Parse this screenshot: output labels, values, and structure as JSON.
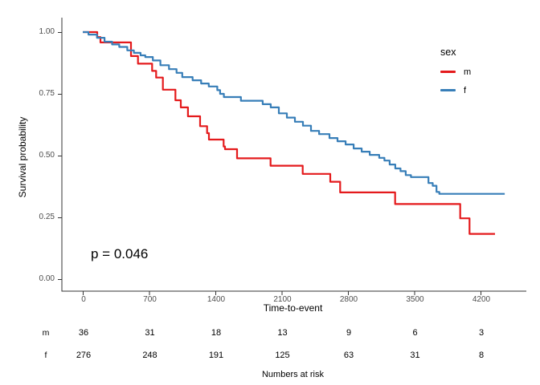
{
  "chart_data": {
    "type": "line",
    "subtype": "kaplan-meier-step-curves",
    "title": "",
    "xlabel": "Time-to-event",
    "ylabel": "Survival probability",
    "xlim": [
      -220,
      4660
    ],
    "ylim": [
      0,
      1.0
    ],
    "grid": false,
    "x_ticks": [
      0,
      700,
      1400,
      2100,
      2800,
      3500,
      4200
    ],
    "y_ticks": [
      {
        "label": "0.00",
        "value": 0.0
      },
      {
        "label": "0.25",
        "value": 0.25
      },
      {
        "label": "0.50",
        "value": 0.5
      },
      {
        "label": "0.75",
        "value": 0.75
      },
      {
        "label": "1.00",
        "value": 1.0
      }
    ],
    "annotation": {
      "p_value_text": "p = 0.046"
    },
    "legend": {
      "title": "sex",
      "position": "right-top",
      "entries": [
        {
          "label": "m",
          "color": "#E41A1C"
        },
        {
          "label": "f",
          "color": "#377EB8"
        }
      ]
    },
    "series": [
      {
        "name": "m",
        "color": "#E41A1C",
        "steps": [
          [
            0,
            1.0
          ],
          [
            153,
            0.98
          ],
          [
            187,
            0.958
          ],
          [
            509,
            0.903
          ],
          [
            583,
            0.872
          ],
          [
            732,
            0.843
          ],
          [
            775,
            0.816
          ],
          [
            846,
            0.767
          ],
          [
            978,
            0.724
          ],
          [
            1035,
            0.695
          ],
          [
            1111,
            0.659
          ],
          [
            1239,
            0.619
          ],
          [
            1313,
            0.591
          ],
          [
            1332,
            0.565
          ],
          [
            1487,
            0.537
          ],
          [
            1502,
            0.526
          ],
          [
            1629,
            0.489
          ],
          [
            1983,
            0.459
          ],
          [
            2322,
            0.426
          ],
          [
            2613,
            0.394
          ],
          [
            2718,
            0.351
          ],
          [
            3298,
            0.304
          ],
          [
            3985,
            0.246
          ],
          [
            4084,
            0.183
          ],
          [
            4353,
            0.183
          ]
        ]
      },
      {
        "name": "f",
        "color": "#377EB8",
        "steps": [
          [
            0,
            1.0
          ],
          [
            60,
            0.99
          ],
          [
            150,
            0.977
          ],
          [
            230,
            0.961
          ],
          [
            310,
            0.95
          ],
          [
            385,
            0.94
          ],
          [
            470,
            0.926
          ],
          [
            540,
            0.916
          ],
          [
            610,
            0.906
          ],
          [
            660,
            0.899
          ],
          [
            740,
            0.885
          ],
          [
            820,
            0.866
          ],
          [
            910,
            0.85
          ],
          [
            990,
            0.835
          ],
          [
            1050,
            0.818
          ],
          [
            1160,
            0.805
          ],
          [
            1250,
            0.792
          ],
          [
            1330,
            0.78
          ],
          [
            1420,
            0.765
          ],
          [
            1450,
            0.75
          ],
          [
            1490,
            0.737
          ],
          [
            1670,
            0.722
          ],
          [
            1900,
            0.708
          ],
          [
            1985,
            0.695
          ],
          [
            2070,
            0.671
          ],
          [
            2155,
            0.654
          ],
          [
            2240,
            0.637
          ],
          [
            2325,
            0.621
          ],
          [
            2410,
            0.6
          ],
          [
            2495,
            0.587
          ],
          [
            2605,
            0.571
          ],
          [
            2690,
            0.558
          ],
          [
            2775,
            0.545
          ],
          [
            2860,
            0.529
          ],
          [
            2945,
            0.516
          ],
          [
            3030,
            0.503
          ],
          [
            3130,
            0.491
          ],
          [
            3185,
            0.48
          ],
          [
            3240,
            0.464
          ],
          [
            3300,
            0.448
          ],
          [
            3355,
            0.437
          ],
          [
            3410,
            0.421
          ],
          [
            3465,
            0.413
          ],
          [
            3650,
            0.389
          ],
          [
            3695,
            0.378
          ],
          [
            3735,
            0.353
          ],
          [
            3765,
            0.345
          ],
          [
            4455,
            0.345
          ]
        ]
      }
    ]
  },
  "risk_table": {
    "title": "Numbers at risk",
    "times": [
      0,
      700,
      1400,
      2100,
      2800,
      3500,
      4200
    ],
    "rows": [
      {
        "label": "m",
        "values": [
          36,
          31,
          18,
          13,
          9,
          6,
          3
        ]
      },
      {
        "label": "f",
        "values": [
          276,
          248,
          191,
          125,
          63,
          31,
          8
        ]
      }
    ]
  }
}
